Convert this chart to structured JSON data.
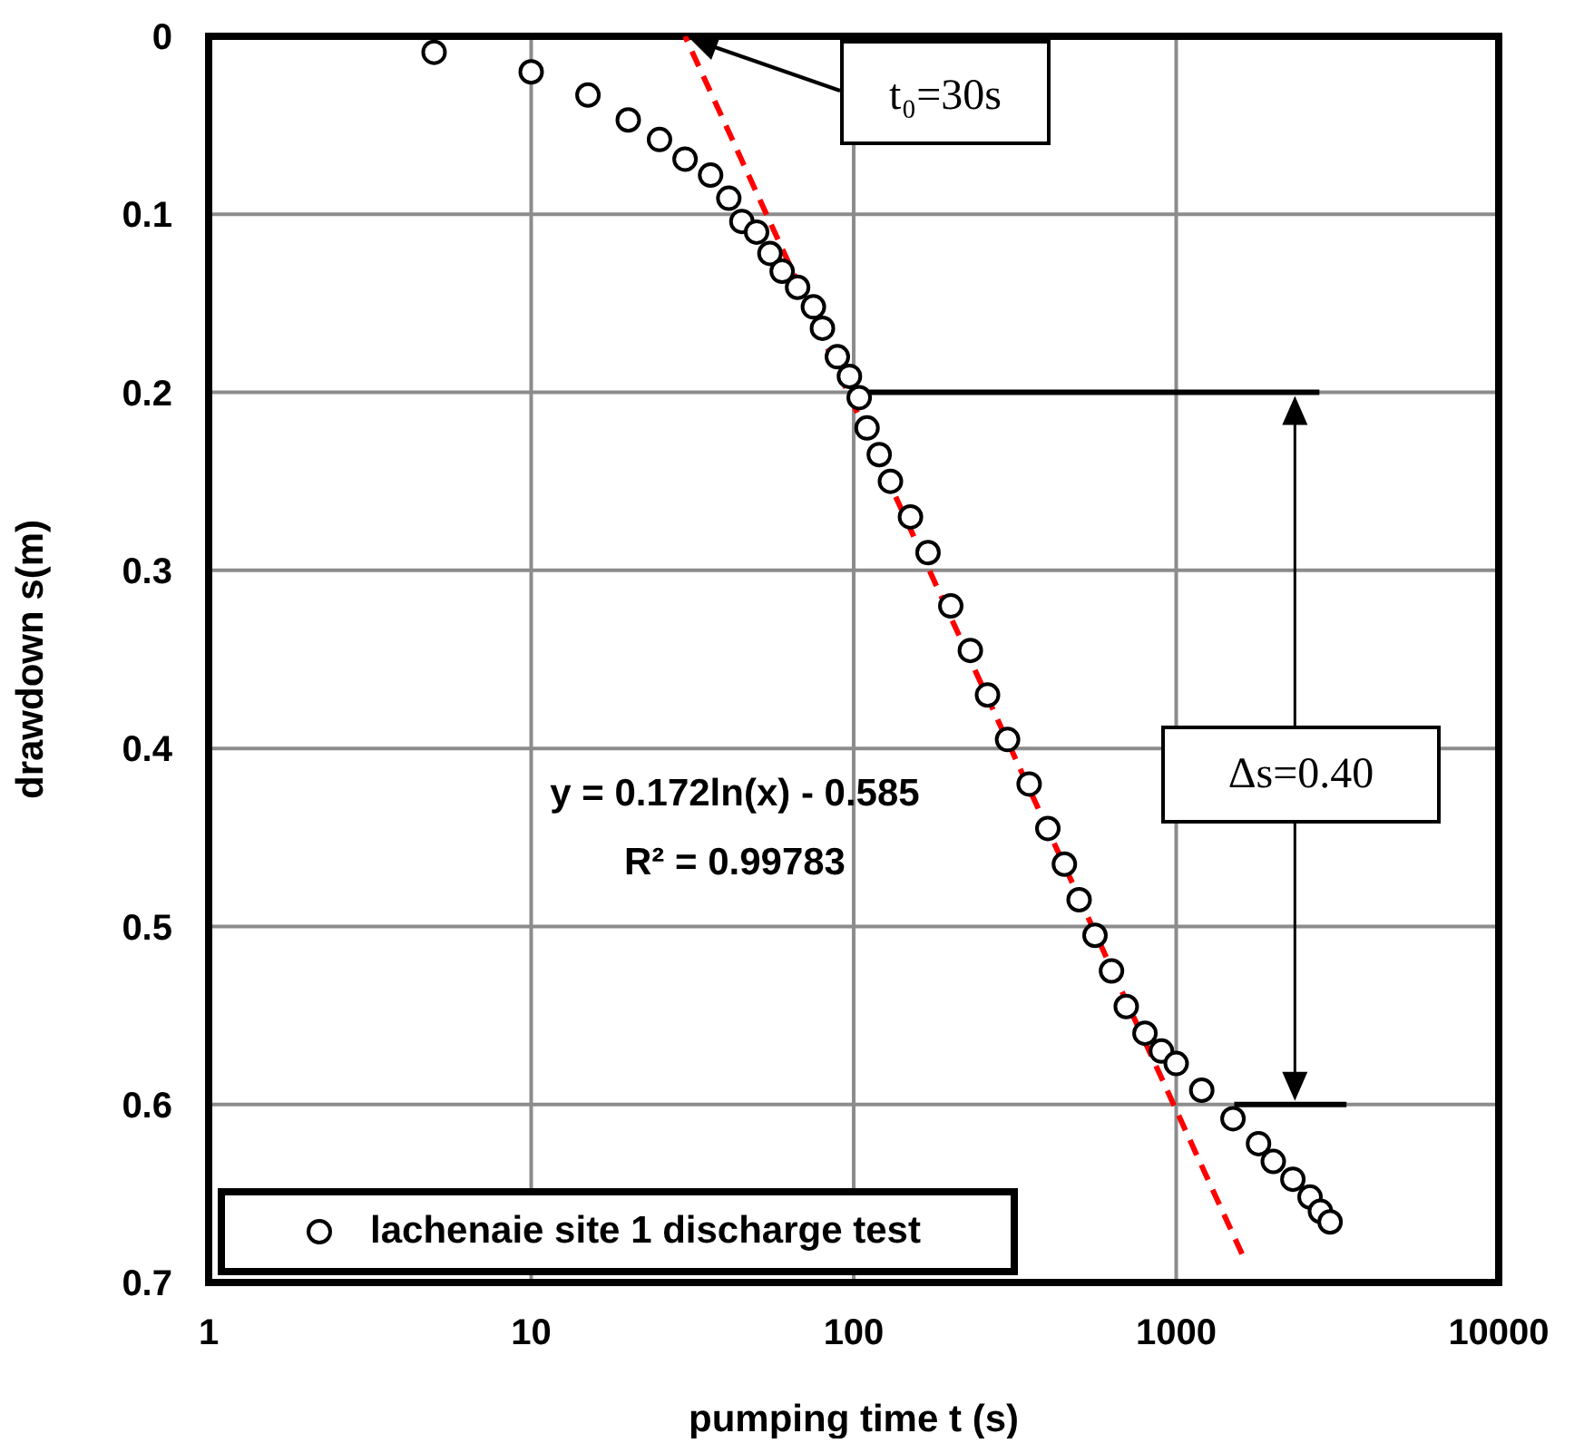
{
  "chart_data": {
    "type": "scatter",
    "xlabel": "pumping time t (s)",
    "ylabel": "drawdown s(m)",
    "xlim": [
      1,
      10000
    ],
    "xticks": [
      1,
      10,
      100,
      1000,
      10000
    ],
    "ylim": [
      0.7,
      0
    ],
    "yticks": [
      0,
      0.1,
      0.2,
      0.3,
      0.4,
      0.5,
      0.6,
      0.7
    ],
    "log": "x",
    "grid": true,
    "legend": "bottom left",
    "marker": "circle",
    "series": [
      {
        "name": "lachenaie site 1 discharge test",
        "color": "#000000",
        "x": [
          5,
          10,
          15,
          20,
          25,
          30,
          36,
          41,
          45,
          50,
          55,
          60,
          67,
          75,
          80,
          89,
          97,
          104,
          110,
          120,
          130,
          150,
          170,
          200,
          230,
          260,
          300,
          350,
          400,
          450,
          500,
          560,
          630,
          700,
          800,
          900,
          1000,
          1200,
          1500,
          1800,
          2000,
          2300,
          2600,
          2800,
          3000
        ],
        "values": [
          0.009,
          0.02,
          0.033,
          0.047,
          0.058,
          0.069,
          0.078,
          0.091,
          0.104,
          0.11,
          0.122,
          0.132,
          0.141,
          0.152,
          0.164,
          0.18,
          0.191,
          0.203,
          0.22,
          0.235,
          0.25,
          0.27,
          0.29,
          0.32,
          0.345,
          0.37,
          0.395,
          0.42,
          0.445,
          0.465,
          0.485,
          0.505,
          0.525,
          0.545,
          0.56,
          0.57,
          0.577,
          0.592,
          0.608,
          0.622,
          0.632,
          0.642,
          0.652,
          0.66,
          0.666
        ]
      },
      {
        "type": "line",
        "color": "#ff0000",
        "line_style": "dashed",
        "marker": "none",
        "x": [
          30,
          1600
        ],
        "values": [
          0,
          0.684
        ]
      }
    ],
    "ref_lines": [
      {
        "axis": "y",
        "value": 0.2,
        "color": "#000000"
      },
      {
        "axis": "y",
        "value": 0.6,
        "color": "#000000"
      }
    ],
    "annotations": [
      "t₀=30s",
      "Δs=0.40",
      "y = 0.172ln(x) - 0.585",
      "R² = 0.99783"
    ]
  }
}
